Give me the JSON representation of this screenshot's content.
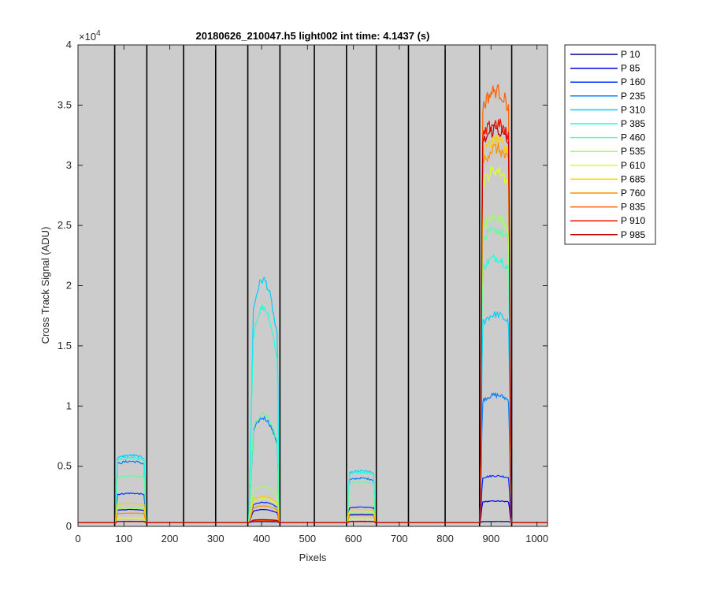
{
  "chart_data": {
    "type": "line",
    "title": "20180626_210047.h5  light002   int time: 4.1437 (s)",
    "xlabel": "Pixels",
    "ylabel": "Cross Track Signal (ADU)",
    "y_exponent_label": "×10",
    "y_exponent_value": "4",
    "xlim": [
      0,
      1023
    ],
    "ylim": [
      0,
      40000
    ],
    "x_ticks": [
      0,
      100,
      200,
      300,
      400,
      500,
      600,
      700,
      800,
      900,
      1000
    ],
    "y_ticks": [
      0,
      5000,
      10000,
      15000,
      20000,
      25000,
      30000,
      35000,
      40000
    ],
    "y_tick_labels": [
      "0",
      "0.5",
      "1",
      "1.5",
      "2",
      "2.5",
      "3",
      "3.5",
      "4"
    ],
    "background": "#cccccc",
    "vertical_lines_x": [
      80,
      150,
      230,
      300,
      370,
      440,
      515,
      585,
      650,
      720,
      800,
      875,
      945
    ],
    "legend_position": "outside-right",
    "baseline": 320,
    "bumps": [
      {
        "start": 82,
        "end": 148,
        "edge": 4
      },
      {
        "start": 372,
        "end": 438,
        "edge": 4
      },
      {
        "start": 587,
        "end": 648,
        "edge": 4
      },
      {
        "start": 877,
        "end": 943,
        "edge": 4
      }
    ],
    "series": [
      {
        "name": "P 10",
        "color": "#00008f",
        "peaks": [
          400,
          400,
          400,
          400
        ]
      },
      {
        "name": "P 85",
        "color": "#0000df",
        "peaks": [
          1400,
          1400,
          1000,
          2100
        ]
      },
      {
        "name": "P 160",
        "color": "#0030ff",
        "peaks": [
          2750,
          2000,
          1600,
          4200
        ]
      },
      {
        "name": "P 235",
        "color": "#0080ff",
        "peaks": [
          5400,
          9000,
          4000,
          10900
        ]
      },
      {
        "name": "P 310",
        "color": "#00cfff",
        "peaks": [
          5900,
          20500,
          4600,
          17600
        ]
      },
      {
        "name": "P 385",
        "color": "#20ffdf",
        "peaks": [
          5700,
          18200,
          4500,
          22300
        ]
      },
      {
        "name": "P 460",
        "color": "#60ff9f",
        "peaks": [
          4200,
          9300,
          3700,
          24600
        ]
      },
      {
        "name": "P 535",
        "color": "#9fff60",
        "peaks": [
          1500,
          3300,
          1200,
          25700
        ]
      },
      {
        "name": "P 610",
        "color": "#dfff20",
        "peaks": [
          700,
          2300,
          600,
          29600
        ]
      },
      {
        "name": "P 685",
        "color": "#ffcf00",
        "peaks": [
          1900,
          2500,
          1400,
          32000
        ]
      },
      {
        "name": "P 760",
        "color": "#ff8f00",
        "peaks": [
          1100,
          1700,
          900,
          31400
        ]
      },
      {
        "name": "P 835",
        "color": "#ff6000",
        "peaks": [
          400,
          500,
          400,
          36200
        ]
      },
      {
        "name": "P 910",
        "color": "#ef1000",
        "peaks": [
          400,
          550,
          400,
          33500
        ]
      },
      {
        "name": "P 985",
        "color": "#c00000",
        "peaks": [
          420,
          560,
          420,
          33000
        ]
      }
    ]
  }
}
